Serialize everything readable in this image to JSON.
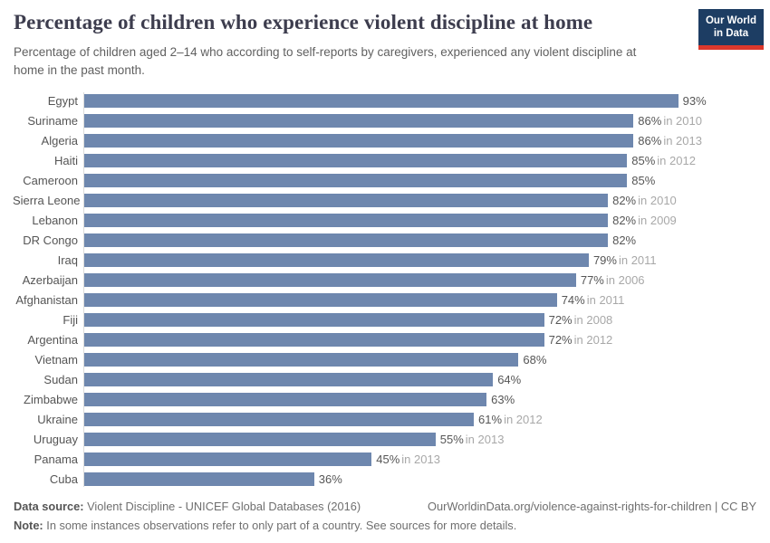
{
  "header": {
    "title": "Percentage of children who experience violent discipline at home",
    "subtitle": "Percentage of children aged 2–14 who according to self-reports by caregivers, experienced any violent discipline at home in the past month.",
    "logo": {
      "line1": "Our World",
      "line2": "in Data"
    }
  },
  "chart_data": {
    "type": "bar",
    "orientation": "horizontal",
    "title": "Percentage of children who experience violent discipline at home",
    "subtitle": "Percentage of children aged 2–14 who according to self-reports by caregivers, experienced any violent discipline at home in the past month.",
    "xlabel": "",
    "ylabel": "",
    "xlim": [
      0,
      100
    ],
    "grid": false,
    "legend": false,
    "bar_color": "#6e87ae",
    "categories": [
      "Egypt",
      "Suriname",
      "Algeria",
      "Haiti",
      "Cameroon",
      "Sierra Leone",
      "Lebanon",
      "DR Congo",
      "Iraq",
      "Azerbaijan",
      "Afghanistan",
      "Fiji",
      "Argentina",
      "Vietnam",
      "Sudan",
      "Zimbabwe",
      "Ukraine",
      "Uruguay",
      "Panama",
      "Cuba"
    ],
    "values": [
      93,
      86,
      86,
      85,
      85,
      82,
      82,
      82,
      79,
      77,
      74,
      72,
      72,
      68,
      64,
      63,
      61,
      55,
      45,
      36
    ],
    "value_labels": [
      "93%",
      "86%",
      "86%",
      "85%",
      "85%",
      "82%",
      "82%",
      "82%",
      "79%",
      "77%",
      "74%",
      "72%",
      "72%",
      "68%",
      "64%",
      "63%",
      "61%",
      "55%",
      "45%",
      "36%"
    ],
    "year_notes": [
      "",
      "in 2010",
      "in 2013",
      "in 2012",
      "",
      "in 2010",
      "in 2009",
      "",
      "in 2011",
      "in 2006",
      "in 2011",
      "in 2008",
      "in 2012",
      "",
      "",
      "",
      "in 2012",
      "in 2013",
      "in 2013",
      ""
    ]
  },
  "footer": {
    "datasource_label": "Data source:",
    "datasource_text": " Violent Discipline - UNICEF Global Databases (2016)",
    "link_text": "OurWorldinData.org/violence-against-rights-for-children | CC BY",
    "note_label": "Note:",
    "note_text": " In some instances observations refer to only part of a country. See sources for more details."
  },
  "colors": {
    "bar": "#6e87ae",
    "title": "#3d3d4e",
    "logo_background": "#1d3d63",
    "logo_underline": "#dc382c",
    "axis_line": "#dcdcdc",
    "value_text": "#565656",
    "year_text": "#a8a8a8"
  }
}
